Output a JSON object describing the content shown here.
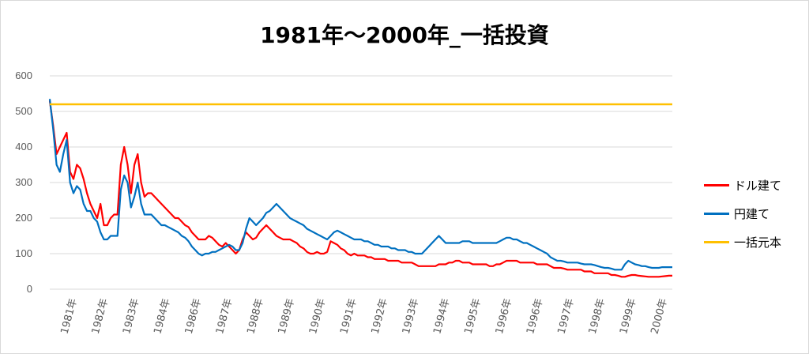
{
  "chart_data": {
    "type": "line",
    "title": "1981年～2000年_一括投資",
    "xlabel": "",
    "ylabel": "",
    "ylim": [
      0,
      600
    ],
    "yticks": [
      0,
      100,
      200,
      300,
      400,
      500,
      600
    ],
    "x_tick_labels": [
      "1981年",
      "1982年",
      "1983年",
      "1984年",
      "1986年",
      "1987年",
      "1988年",
      "1989年",
      "1990年",
      "1991年",
      "1992年",
      "1993年",
      "1994年",
      "1995年",
      "1996年",
      "1996年",
      "1997年",
      "1998年",
      "1999年",
      "2000年"
    ],
    "grid": true,
    "legend_position": "right",
    "series": [
      {
        "name": "ドル建て",
        "color": "#ff0000",
        "values": [
          530,
          460,
          380,
          400,
          420,
          440,
          330,
          310,
          350,
          340,
          310,
          270,
          240,
          220,
          200,
          240,
          180,
          180,
          200,
          210,
          210,
          350,
          400,
          350,
          270,
          350,
          380,
          300,
          260,
          270,
          270,
          260,
          250,
          240,
          230,
          220,
          210,
          200,
          200,
          190,
          180,
          175,
          160,
          150,
          140,
          140,
          140,
          150,
          145,
          135,
          125,
          120,
          130,
          120,
          110,
          100,
          110,
          140,
          160,
          150,
          140,
          145,
          160,
          170,
          180,
          170,
          160,
          150,
          145,
          140,
          140,
          140,
          135,
          130,
          120,
          115,
          105,
          100,
          100,
          105,
          100,
          100,
          105,
          135,
          130,
          125,
          115,
          110,
          100,
          95,
          100,
          95,
          95,
          95,
          90,
          90,
          85,
          85,
          85,
          85,
          80,
          80,
          80,
          80,
          75,
          75,
          75,
          75,
          70,
          65,
          65,
          65,
          65,
          65,
          65,
          70,
          70,
          70,
          75,
          75,
          80,
          80,
          75,
          75,
          75,
          70,
          70,
          70,
          70,
          70,
          65,
          65,
          70,
          70,
          75,
          80,
          80,
          80,
          80,
          75,
          75,
          75,
          75,
          75,
          70,
          70,
          70,
          70,
          65,
          60,
          60,
          60,
          58,
          55,
          55,
          55,
          55,
          55,
          50,
          50,
          50,
          45,
          45,
          45,
          45,
          45,
          40,
          40,
          38,
          35,
          35,
          38,
          40,
          40,
          38,
          37,
          36,
          35,
          35,
          35,
          35,
          36,
          37,
          38,
          38
        ]
      },
      {
        "name": "円建て",
        "color": "#0070c0",
        "values": [
          535,
          450,
          350,
          330,
          380,
          420,
          300,
          270,
          290,
          280,
          240,
          220,
          220,
          200,
          190,
          160,
          140,
          140,
          150,
          150,
          150,
          280,
          320,
          300,
          230,
          260,
          300,
          240,
          210,
          210,
          210,
          200,
          190,
          180,
          180,
          175,
          170,
          165,
          160,
          150,
          145,
          135,
          120,
          110,
          100,
          95,
          100,
          100,
          105,
          105,
          110,
          115,
          120,
          125,
          120,
          110,
          110,
          130,
          170,
          200,
          190,
          180,
          190,
          200,
          215,
          220,
          230,
          240,
          230,
          220,
          210,
          200,
          195,
          190,
          185,
          180,
          170,
          165,
          160,
          155,
          150,
          145,
          140,
          150,
          160,
          165,
          160,
          155,
          150,
          145,
          140,
          140,
          140,
          135,
          135,
          130,
          125,
          125,
          120,
          120,
          120,
          115,
          115,
          110,
          110,
          110,
          105,
          105,
          100,
          100,
          100,
          110,
          120,
          130,
          140,
          150,
          140,
          130,
          130,
          130,
          130,
          130,
          135,
          135,
          135,
          130,
          130,
          130,
          130,
          130,
          130,
          130,
          130,
          135,
          140,
          145,
          145,
          140,
          140,
          135,
          130,
          130,
          125,
          120,
          115,
          110,
          105,
          100,
          90,
          85,
          80,
          80,
          78,
          75,
          75,
          75,
          75,
          72,
          70,
          70,
          70,
          68,
          65,
          62,
          60,
          60,
          58,
          55,
          55,
          55,
          70,
          80,
          75,
          70,
          68,
          65,
          65,
          62,
          60,
          60,
          60,
          62,
          62,
          62,
          62
        ]
      },
      {
        "name": "一括元本",
        "color": "#ffc000",
        "values": [
          520,
          520
        ]
      }
    ]
  }
}
